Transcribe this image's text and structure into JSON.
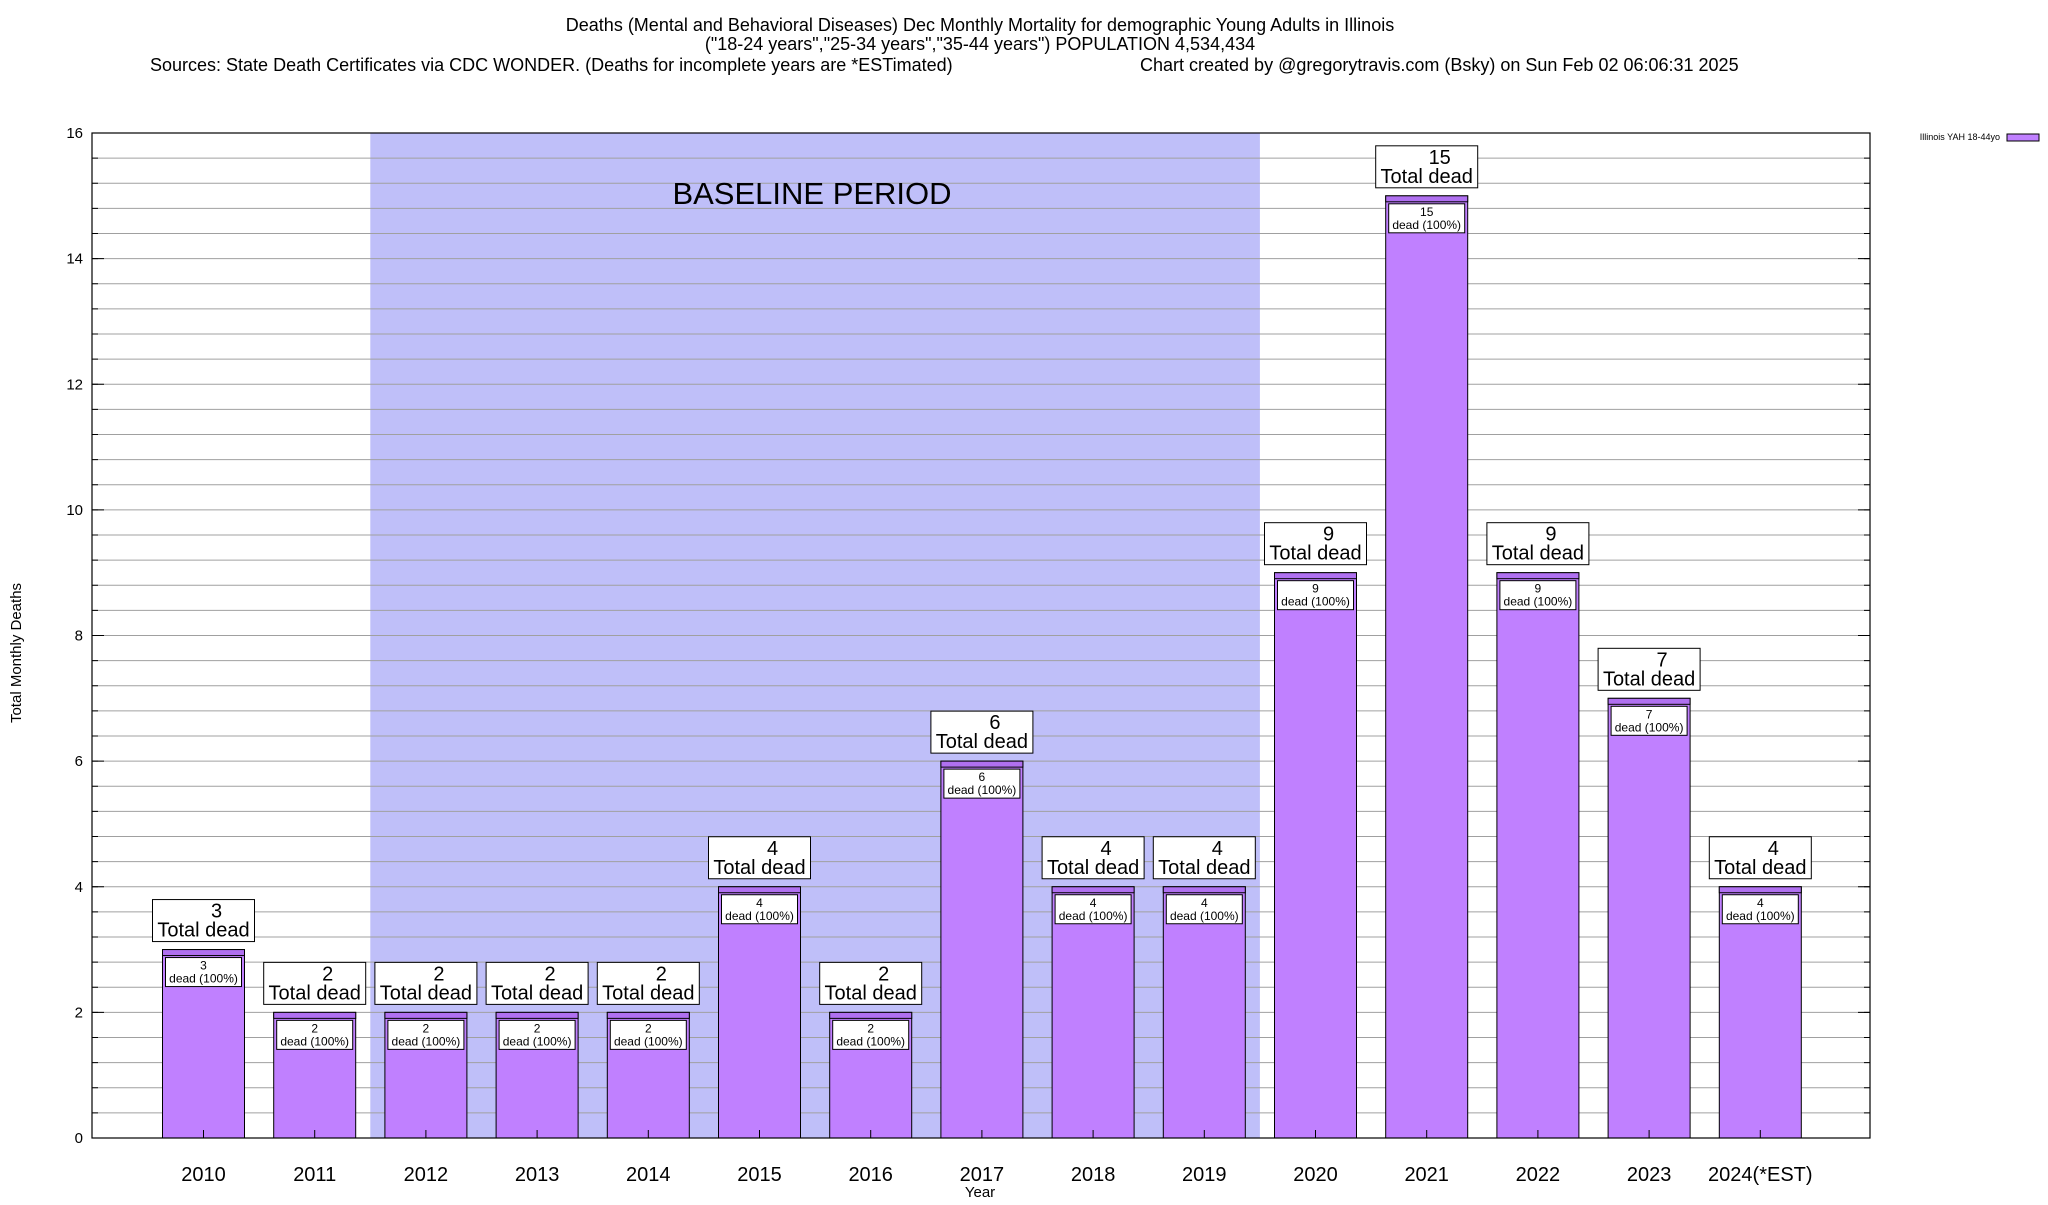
{
  "header": {
    "title_line1": "Deaths (Mental and Behavioral Diseases) Dec Monthly Mortality for demographic Young Adults in Illinois",
    "title_line2": "(\"18-24 years\",\"25-34 years\",\"35-44 years\") POPULATION 4,534,434",
    "sources": "Sources: State Death Certificates via CDC WONDER. (Deaths for incomplete years are *ESTimated)",
    "credit": "Chart created by @gregorytravis.com (Bsky) on Sun Feb 02 06:06:31 2025"
  },
  "chart_data": {
    "type": "bar",
    "xlabel": "Year",
    "ylabel": "Total Monthly Deaths",
    "ylim": [
      0,
      16
    ],
    "yticks": [
      0,
      2,
      4,
      6,
      8,
      10,
      12,
      14,
      16
    ],
    "grid": true,
    "legend": {
      "placement": "top-right",
      "label": "Illinois YAH 18-44yo"
    },
    "categories": [
      "2010",
      "2011",
      "2012",
      "2013",
      "2014",
      "2015",
      "2016",
      "2017",
      "2018",
      "2019",
      "2020",
      "2021",
      "2022",
      "2023",
      "2024(*EST)"
    ],
    "series": [
      {
        "name": "Illinois YAH 18-44yo",
        "values": [
          3,
          2,
          2,
          2,
          2,
          4,
          2,
          6,
          4,
          4,
          9,
          15,
          9,
          7,
          4
        ]
      }
    ],
    "total_label_text": "Total dead",
    "inner_label_text": "dead (100%)",
    "baseline": {
      "label": "BASELINE PERIOD",
      "from": "2012",
      "to": "2019"
    }
  },
  "colors": {
    "bar_fill": "#c080ff",
    "bar_top": "#b070f0",
    "baseline_fill": "#bfbff9",
    "grid": "#a0a0a0",
    "axis": "#000000"
  }
}
